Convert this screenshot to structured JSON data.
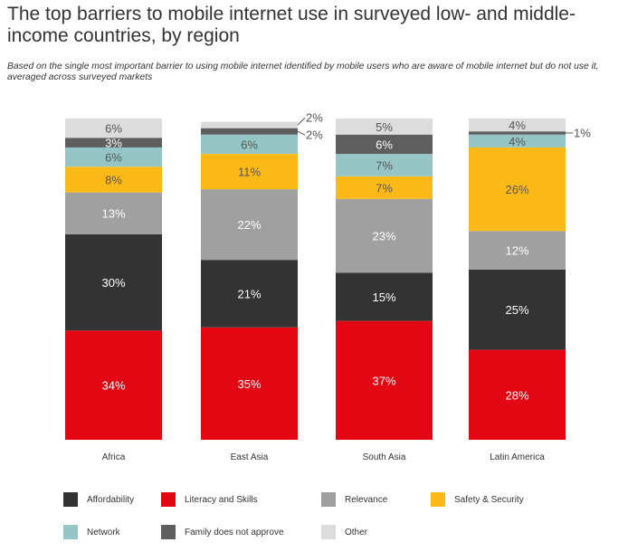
{
  "title": "The top barriers to mobile internet use in surveyed low- and middle-income countries, by region",
  "subtitle": "Based on the single most important barrier to using mobile internet identified by mobile users who are aware of mobile internet but do not use it, averaged across surveyed markets",
  "colors": {
    "Literacy and Skills": "#e30613",
    "Affordability": "#333333",
    "Relevance": "#a0a0a0",
    "Safety & Security": "#fbb918",
    "Network": "#95c6c5",
    "Family does not approve": "#5e5e5e",
    "Other": "#dcdcdc"
  },
  "legend": [
    "Affordability",
    "Literacy and Skills",
    "Relevance",
    "Safety & Security",
    "Network",
    "Family does not approve",
    "Other"
  ],
  "chart_data": {
    "type": "bar",
    "stacked": true,
    "categories": [
      "Africa",
      "East Asia",
      "South Asia",
      "Latin America"
    ],
    "series": [
      {
        "name": "Literacy and Skills",
        "values": [
          34,
          35,
          37,
          28
        ]
      },
      {
        "name": "Affordability",
        "values": [
          30,
          21,
          15,
          25
        ]
      },
      {
        "name": "Relevance",
        "values": [
          13,
          22,
          23,
          12
        ]
      },
      {
        "name": "Safety & Security",
        "values": [
          8,
          11,
          7,
          26
        ]
      },
      {
        "name": "Network",
        "values": [
          6,
          6,
          7,
          4
        ]
      },
      {
        "name": "Family does not approve",
        "values": [
          3,
          2,
          6,
          1
        ]
      },
      {
        "name": "Other",
        "values": [
          6,
          2,
          5,
          4
        ]
      }
    ],
    "value_labels": [
      [
        "34%",
        "35%",
        "37%",
        "28%"
      ],
      [
        "30%",
        "21%",
        "15%",
        "25%"
      ],
      [
        "13%",
        "22%",
        "23%",
        "12%"
      ],
      [
        "8%",
        "11%",
        "7%",
        "26%"
      ],
      [
        "6%",
        "6%",
        "7%",
        "4%"
      ],
      [
        "3%",
        "2%",
        "6%",
        "1%"
      ],
      [
        "6%",
        "2%",
        "5%",
        "4%"
      ]
    ],
    "ylim": [
      0,
      100
    ],
    "grid": false,
    "legend_position": "bottom"
  }
}
